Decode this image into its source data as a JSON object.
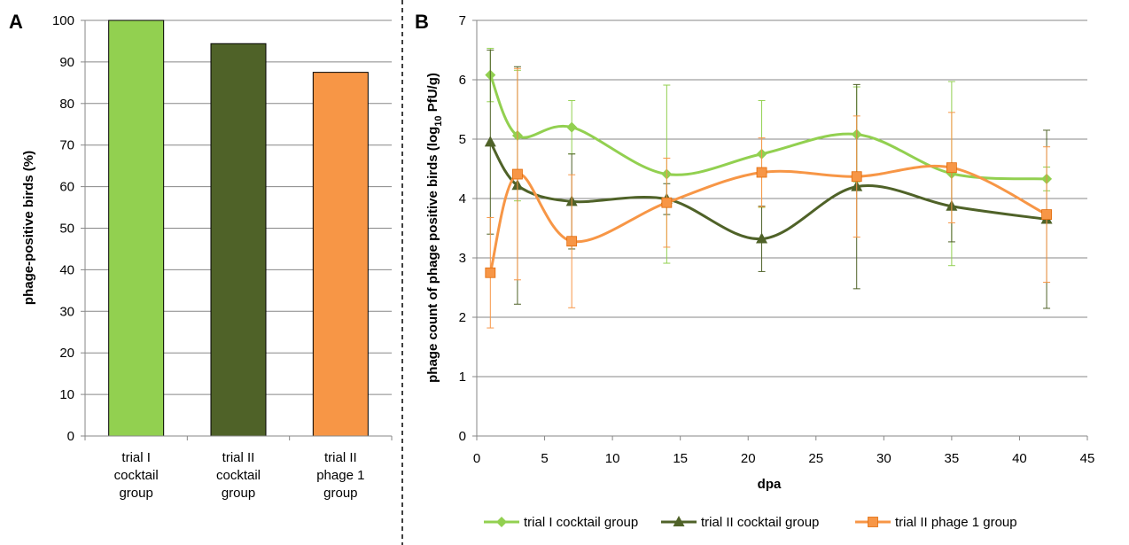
{
  "chart_data": [
    {
      "panel": "A",
      "type": "bar",
      "categories": [
        [
          "trial I",
          "cocktail",
          "group"
        ],
        [
          "trial II",
          "cocktail",
          "group"
        ],
        [
          "trial II",
          "phage 1",
          "group"
        ]
      ],
      "values": [
        100,
        94.4,
        87.5
      ],
      "colors": [
        "#92d050",
        "#4f6228",
        "#f79646"
      ],
      "ylabel": "phage-positive birds (%)",
      "xlabel": "",
      "ylim": [
        0,
        100
      ],
      "yticks": [
        0,
        10,
        20,
        30,
        40,
        50,
        60,
        70,
        80,
        90,
        100
      ],
      "grid": true
    },
    {
      "panel": "B",
      "type": "line",
      "xlabel": "dpa",
      "ylabel_parts": [
        "phage count of phage positive birds (log",
        "10",
        " PfU/g)"
      ],
      "xlim": [
        0,
        45
      ],
      "ylim": [
        0,
        7
      ],
      "xticks": [
        0,
        5,
        10,
        15,
        20,
        25,
        30,
        35,
        40,
        45
      ],
      "yticks": [
        0,
        1,
        2,
        3,
        4,
        5,
        6,
        7
      ],
      "grid": true,
      "legend_position": "bottom",
      "series": [
        {
          "name": "trial I cocktail group",
          "color": "#92d050",
          "marker": "diamond",
          "x": [
            1,
            3,
            7,
            14,
            21,
            28,
            35,
            42
          ],
          "y": [
            6.08,
            5.06,
            5.2,
            4.41,
            4.75,
            5.08,
            4.42,
            4.33
          ],
          "err": [
            0.45,
            1.1,
            0.45,
            1.5,
            0.9,
            0.8,
            1.55,
            0.2
          ]
        },
        {
          "name": "trial II cocktail group",
          "color": "#4f6228",
          "marker": "triangle",
          "x": [
            1,
            3,
            7,
            14,
            21,
            28,
            35,
            42
          ],
          "y": [
            4.95,
            4.22,
            3.95,
            3.99,
            3.32,
            4.2,
            3.87,
            3.65
          ],
          "err": [
            1.55,
            2.0,
            0.8,
            0.26,
            0.55,
            1.72,
            0.6,
            1.5
          ]
        },
        {
          "name": "trial II phage 1 group",
          "color": "#f79646",
          "marker": "square",
          "x": [
            1,
            3,
            7,
            14,
            21,
            28,
            35,
            42
          ],
          "y": [
            2.75,
            4.41,
            3.28,
            3.93,
            4.44,
            4.37,
            4.52,
            3.73
          ],
          "err": [
            0.93,
            1.78,
            1.12,
            0.75,
            0.58,
            1.02,
            0.93,
            1.14
          ]
        }
      ]
    }
  ]
}
